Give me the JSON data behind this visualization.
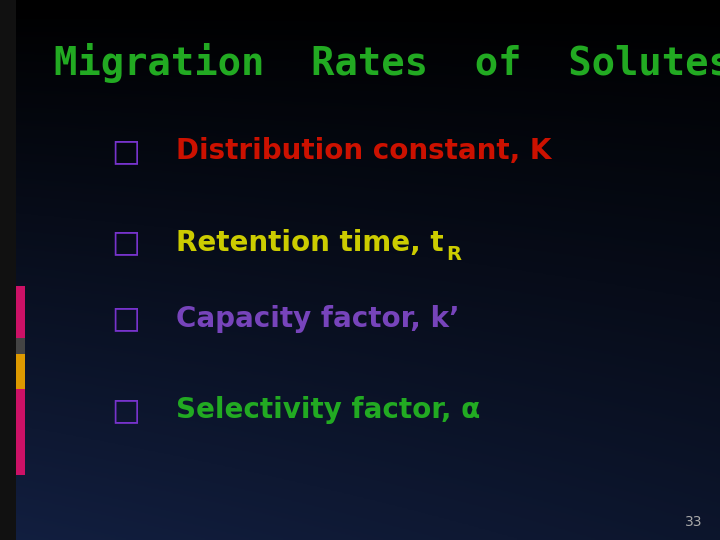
{
  "title": "Migration  Rates  of  Solutes",
  "title_color": "#22aa22",
  "title_fontsize": 28,
  "bullet_char": "□",
  "bullet_color": "#7733cc",
  "bullet_fontsize": 22,
  "items": [
    {
      "text": "Distribution constant, K",
      "color": "#cc1100",
      "fontsize": 20
    },
    {
      "text": "Retention time, t",
      "sub": "R",
      "color": "#cccc00",
      "fontsize": 20
    },
    {
      "text": "Capacity factor, k’",
      "color": "#7744bb",
      "fontsize": 20
    },
    {
      "text": "Selectivity factor, α",
      "color": "#22aa22",
      "fontsize": 20
    }
  ],
  "page_number": "33",
  "page_number_color": "#aaaaaa",
  "page_number_fontsize": 10
}
